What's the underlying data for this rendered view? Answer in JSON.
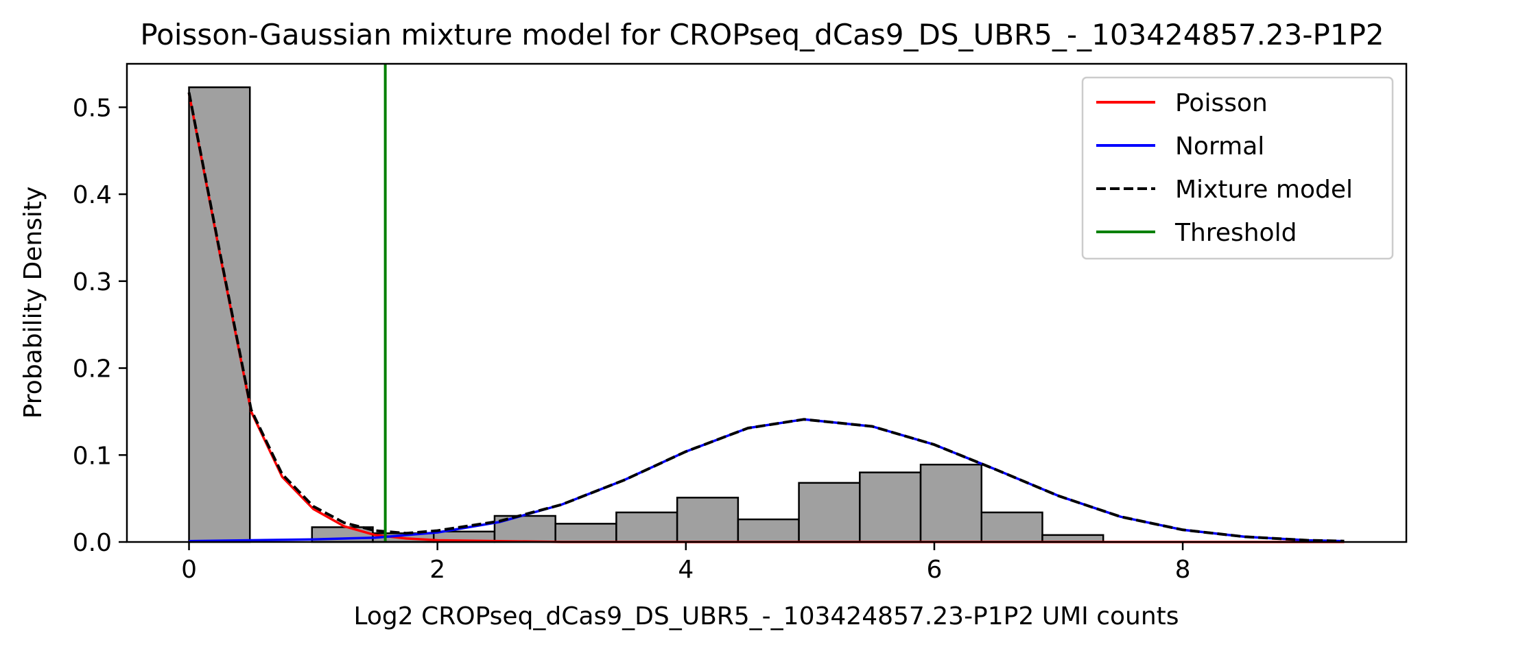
{
  "chart_data": {
    "type": "histogram",
    "title": "Poisson-Gaussian mixture model for CROPseq_dCas9_DS_UBR5_-_103424857.23-P1P2",
    "xlabel": "Log2 CROPseq_dCas9_DS_UBR5_-_103424857.23-P1P2 UMI counts",
    "ylabel": "Probability Density",
    "xlim": [
      -0.5,
      9.8
    ],
    "ylim": [
      0,
      0.55
    ],
    "xticks": [
      0,
      2,
      4,
      6,
      8
    ],
    "xtick_labels": [
      "0",
      "2",
      "4",
      "6",
      "8"
    ],
    "yticks": [
      0,
      0.1,
      0.2,
      0.3,
      0.4,
      0.5
    ],
    "ytick_labels": [
      "0.0",
      "0.1",
      "0.2",
      "0.3",
      "0.4",
      "0.5"
    ],
    "grid": false,
    "legend_position": "top-right",
    "histogram": {
      "color": "#a0a0a0",
      "edgecolor": "#000000",
      "bins": [
        {
          "x0": 0.0,
          "x1": 0.49,
          "value": 0.523
        },
        {
          "x0": 0.99,
          "x1": 1.48,
          "value": 0.017
        },
        {
          "x0": 1.48,
          "x1": 1.97,
          "value": 0.01
        },
        {
          "x0": 1.97,
          "x1": 2.46,
          "value": 0.012
        },
        {
          "x0": 2.46,
          "x1": 2.95,
          "value": 0.03
        },
        {
          "x0": 2.95,
          "x1": 3.44,
          "value": 0.021
        },
        {
          "x0": 3.44,
          "x1": 3.93,
          "value": 0.034
        },
        {
          "x0": 3.93,
          "x1": 4.42,
          "value": 0.051
        },
        {
          "x0": 4.42,
          "x1": 4.91,
          "value": 0.026
        },
        {
          "x0": 4.91,
          "x1": 5.4,
          "value": 0.068
        },
        {
          "x0": 5.4,
          "x1": 5.89,
          "value": 0.08
        },
        {
          "x0": 5.89,
          "x1": 6.38,
          "value": 0.089
        },
        {
          "x0": 6.38,
          "x1": 6.87,
          "value": 0.034
        },
        {
          "x0": 6.87,
          "x1": 7.36,
          "value": 0.008
        }
      ]
    },
    "series": [
      {
        "name": "Poisson",
        "color": "#ff0000",
        "style": "solid",
        "points": [
          [
            0,
            0.516
          ],
          [
            0.25,
            0.33
          ],
          [
            0.5,
            0.15
          ],
          [
            0.75,
            0.075
          ],
          [
            1.0,
            0.038
          ],
          [
            1.25,
            0.018
          ],
          [
            1.5,
            0.008
          ],
          [
            1.75,
            0.004
          ],
          [
            2.0,
            0.002
          ],
          [
            2.5,
            0.001
          ],
          [
            3.0,
            0.0
          ],
          [
            9.3,
            0.0
          ]
        ]
      },
      {
        "name": "Normal",
        "color": "#0000ff",
        "style": "solid",
        "points": [
          [
            0,
            0.001
          ],
          [
            0.5,
            0.002
          ],
          [
            1.0,
            0.003
          ],
          [
            1.5,
            0.005
          ],
          [
            2.0,
            0.011
          ],
          [
            2.5,
            0.023
          ],
          [
            3.0,
            0.043
          ],
          [
            3.5,
            0.071
          ],
          [
            4.0,
            0.104
          ],
          [
            4.5,
            0.131
          ],
          [
            4.95,
            0.141
          ],
          [
            5.5,
            0.133
          ],
          [
            6.0,
            0.112
          ],
          [
            6.5,
            0.083
          ],
          [
            7.0,
            0.053
          ],
          [
            7.5,
            0.029
          ],
          [
            8.0,
            0.014
          ],
          [
            8.5,
            0.006
          ],
          [
            9.0,
            0.002
          ],
          [
            9.3,
            0.001
          ]
        ]
      },
      {
        "name": "Mixture model",
        "color": "#000000",
        "style": "dashed",
        "points": [
          [
            0,
            0.517
          ],
          [
            0.25,
            0.332
          ],
          [
            0.5,
            0.152
          ],
          [
            0.75,
            0.078
          ],
          [
            1.0,
            0.041
          ],
          [
            1.25,
            0.022
          ],
          [
            1.5,
            0.013
          ],
          [
            1.75,
            0.01
          ],
          [
            2.0,
            0.013
          ],
          [
            2.5,
            0.024
          ],
          [
            3.0,
            0.043
          ],
          [
            3.5,
            0.071
          ],
          [
            4.0,
            0.104
          ],
          [
            4.5,
            0.131
          ],
          [
            4.95,
            0.141
          ],
          [
            5.5,
            0.133
          ],
          [
            6.0,
            0.112
          ],
          [
            6.5,
            0.083
          ],
          [
            7.0,
            0.053
          ],
          [
            7.5,
            0.029
          ],
          [
            8.0,
            0.014
          ],
          [
            8.5,
            0.006
          ],
          [
            9.0,
            0.002
          ],
          [
            9.3,
            0.001
          ]
        ]
      },
      {
        "name": "Threshold",
        "color": "#008000",
        "style": "vline",
        "x": 1.58
      }
    ]
  }
}
